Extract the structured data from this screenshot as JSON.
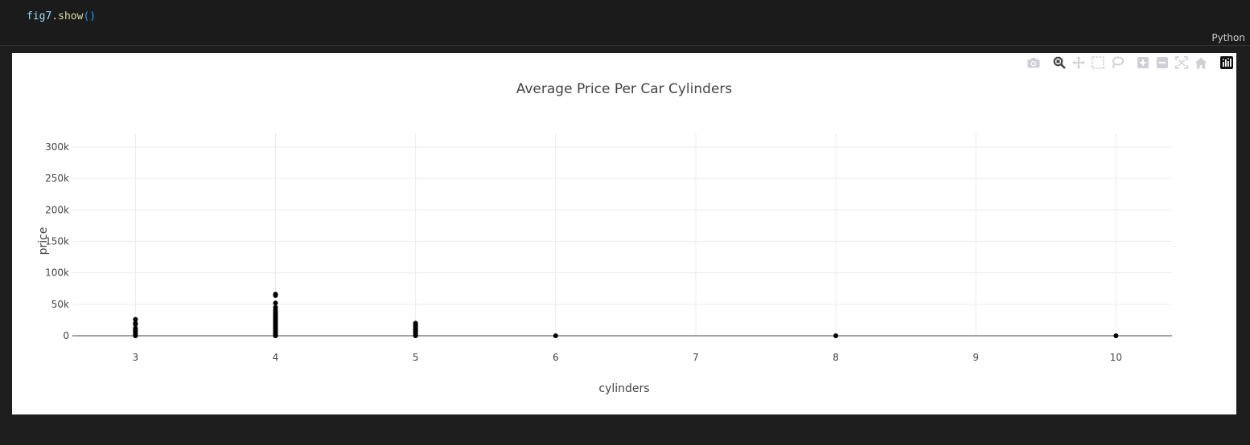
{
  "cell": {
    "code_var": "fig7",
    "code_dot": ".",
    "code_fn": "show",
    "code_parens": "()",
    "language": "Python"
  },
  "modebar": {
    "icons": [
      "camera-icon",
      "zoom-icon",
      "pan-icon",
      "box-select-icon",
      "lasso-icon",
      "zoom-in-icon",
      "zoom-out-icon",
      "autoscale-icon",
      "reset-axes-icon",
      "plotly-logo-icon"
    ]
  },
  "chart_data": {
    "type": "scatter",
    "title": "Average Price Per Car Cylinders",
    "xlabel": "cylinders",
    "ylabel": "price",
    "xlim": [
      2.55,
      10.4
    ],
    "ylim": [
      0,
      300000
    ],
    "x_ticks": [
      3,
      4,
      5,
      6,
      7,
      8,
      9,
      10
    ],
    "x_tick_labels": [
      "3",
      "4",
      "5",
      "6",
      "7",
      "8",
      "9",
      "10"
    ],
    "y_ticks": [
      0,
      50000,
      100000,
      150000,
      200000,
      250000,
      300000
    ],
    "y_tick_labels": [
      "0",
      "50k",
      "100k",
      "150k",
      "200k",
      "250k",
      "300k"
    ],
    "grid": true,
    "marker_color": "#000000",
    "series": [
      {
        "points": [
          [
            3,
            0
          ],
          [
            3,
            2000
          ],
          [
            3,
            4500
          ],
          [
            3,
            7000
          ],
          [
            3,
            9500
          ],
          [
            3,
            12000
          ],
          [
            3,
            18000
          ],
          [
            3,
            20000
          ],
          [
            3,
            26000
          ],
          [
            4,
            0
          ],
          [
            4,
            1500
          ],
          [
            4,
            3000
          ],
          [
            4,
            5000
          ],
          [
            4,
            7000
          ],
          [
            4,
            9000
          ],
          [
            4,
            11000
          ],
          [
            4,
            13000
          ],
          [
            4,
            15000
          ],
          [
            4,
            17000
          ],
          [
            4,
            19000
          ],
          [
            4,
            21000
          ],
          [
            4,
            23000
          ],
          [
            4,
            25000
          ],
          [
            4,
            27000
          ],
          [
            4,
            29000
          ],
          [
            4,
            31000
          ],
          [
            4,
            33000
          ],
          [
            4,
            35000
          ],
          [
            4,
            38000
          ],
          [
            4,
            41000
          ],
          [
            4,
            45000
          ],
          [
            4,
            52000
          ],
          [
            4,
            64000
          ],
          [
            4,
            66000
          ],
          [
            5,
            0
          ],
          [
            5,
            2000
          ],
          [
            5,
            4000
          ],
          [
            5,
            6000
          ],
          [
            5,
            8000
          ],
          [
            5,
            10000
          ],
          [
            5,
            12000
          ],
          [
            5,
            14000
          ],
          [
            5,
            16000
          ],
          [
            5,
            18000
          ],
          [
            5,
            20000
          ],
          [
            6,
            0
          ],
          [
            8,
            0
          ],
          [
            10,
            0
          ]
        ]
      }
    ]
  }
}
